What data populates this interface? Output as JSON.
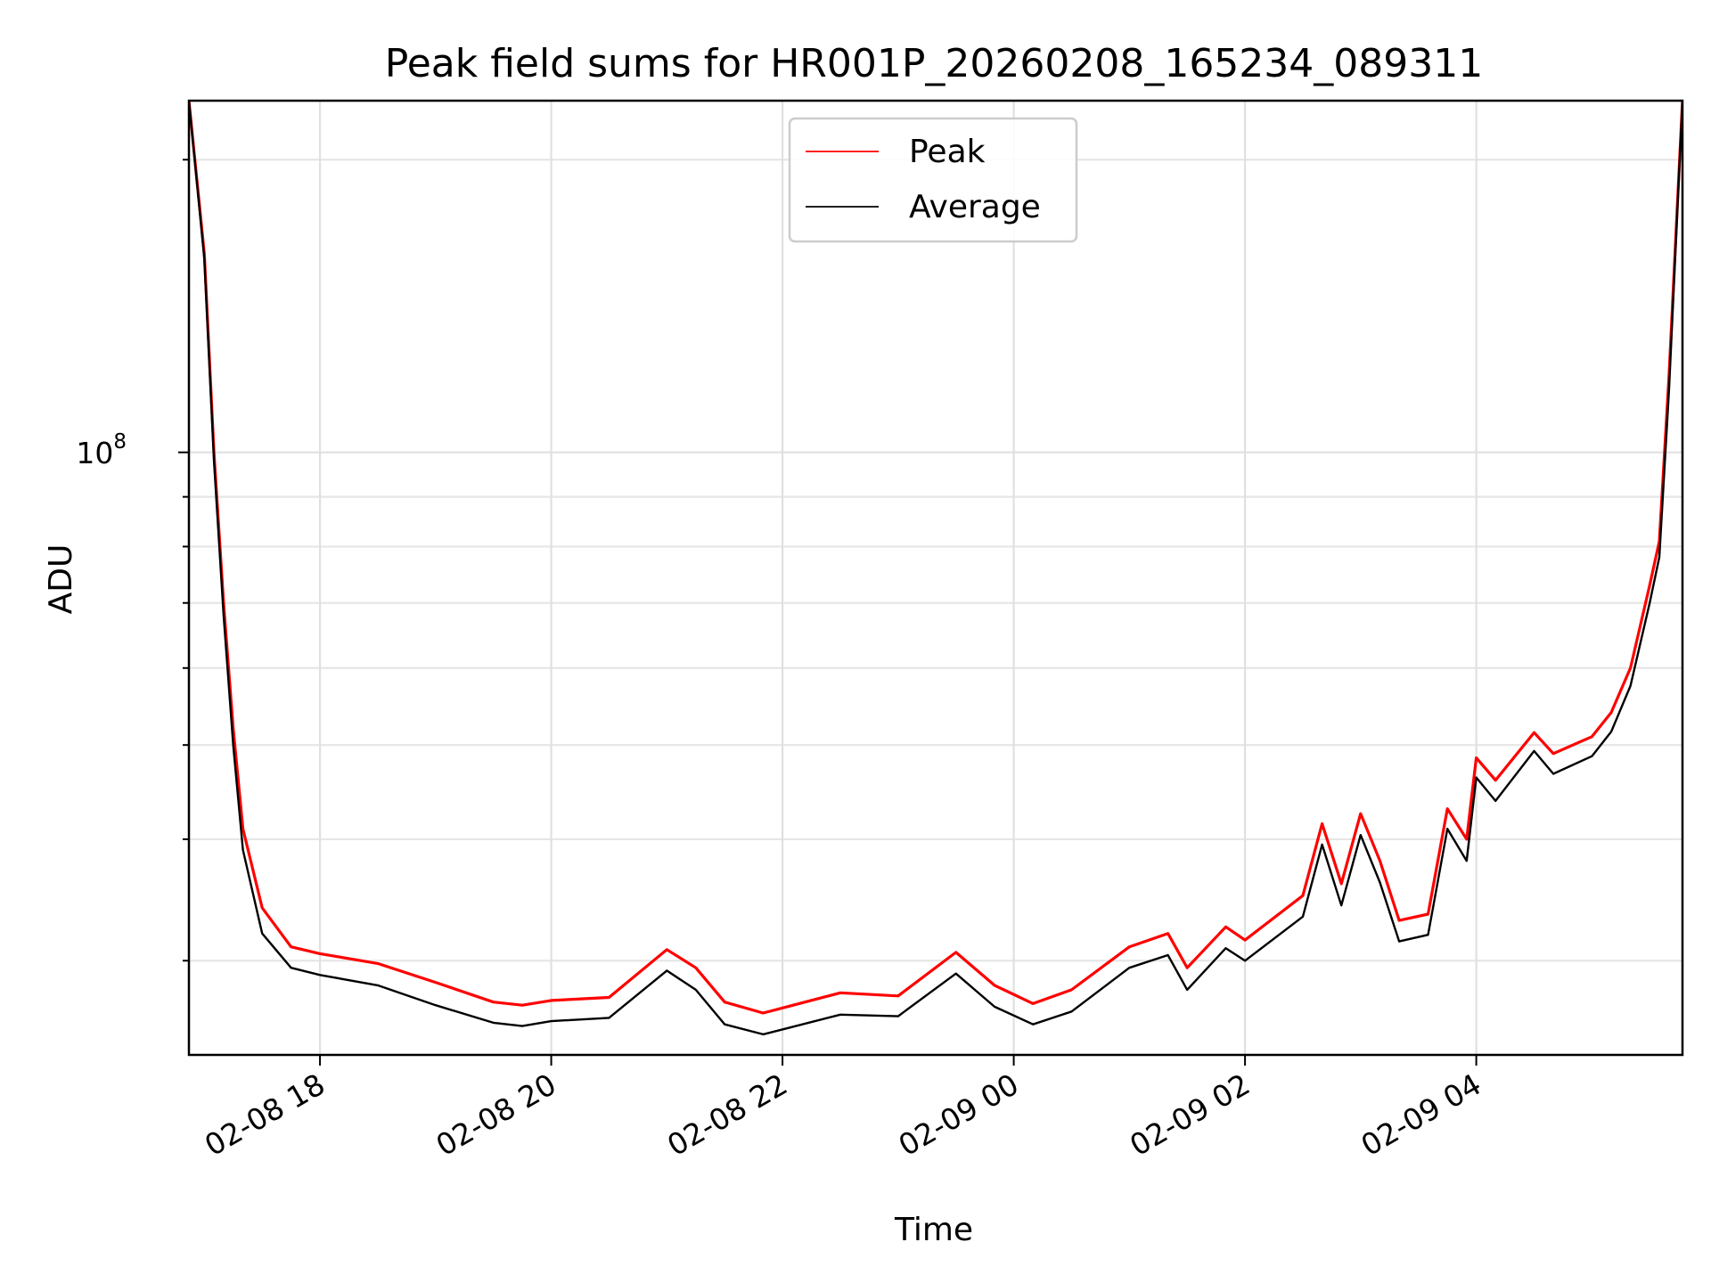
{
  "chart_data": {
    "type": "line",
    "title": "Peak field sums for HR001P_20260208_165234_089311",
    "xlabel": "Time",
    "ylabel": "ADU",
    "x_ticks": [
      "02-08 18",
      "02-08 20",
      "02-08 22",
      "02-09 00",
      "02-09 02",
      "02-09 04"
    ],
    "y_tick_base": "10",
    "y_tick_exponent": "8",
    "yscale": "log",
    "xlim": [
      "2026-02-08 16:52",
      "2026-02-09 05:47"
    ],
    "ylim": [
      24000000,
      230000000
    ],
    "grid": true,
    "legend_position": "upper center",
    "x": [
      "2026-02-08 16:52",
      "2026-02-08 17:00",
      "2026-02-08 17:05",
      "2026-02-08 17:10",
      "2026-02-08 17:15",
      "2026-02-08 17:20",
      "2026-02-08 17:30",
      "2026-02-08 17:45",
      "2026-02-08 18:00",
      "2026-02-08 18:30",
      "2026-02-08 19:00",
      "2026-02-08 19:30",
      "2026-02-08 19:45",
      "2026-02-08 20:00",
      "2026-02-08 20:30",
      "2026-02-08 21:00",
      "2026-02-08 21:15",
      "2026-02-08 21:30",
      "2026-02-08 21:50",
      "2026-02-08 22:30",
      "2026-02-08 23:00",
      "2026-02-08 23:30",
      "2026-02-08 23:50",
      "2026-02-09 00:10",
      "2026-02-09 00:30",
      "2026-02-09 01:00",
      "2026-02-09 01:20",
      "2026-02-09 01:30",
      "2026-02-09 01:50",
      "2026-02-09 02:00",
      "2026-02-09 02:30",
      "2026-02-09 02:40",
      "2026-02-09 02:50",
      "2026-02-09 03:00",
      "2026-02-09 03:10",
      "2026-02-09 03:20",
      "2026-02-09 03:35",
      "2026-02-09 03:45",
      "2026-02-09 03:55",
      "2026-02-09 04:00",
      "2026-02-09 04:10",
      "2026-02-09 04:30",
      "2026-02-09 04:40",
      "2026-02-09 05:00",
      "2026-02-09 05:10",
      "2026-02-09 05:20",
      "2026-02-09 05:30",
      "2026-02-09 05:35",
      "2026-02-09 05:40",
      "2026-02-09 05:47"
    ],
    "series": [
      {
        "name": "Peak",
        "color": "#ff0000",
        "values": [
          230000000,
          160000000,
          100000000,
          70000000,
          52000000,
          41000000,
          34000000,
          31000000,
          30500000,
          29800000,
          28500000,
          27200000,
          27000000,
          27300000,
          27500000,
          30800000,
          29500000,
          27200000,
          26500000,
          27800000,
          27600000,
          30600000,
          28300000,
          27100000,
          28000000,
          31000000,
          32000000,
          29500000,
          32500000,
          31500000,
          35000000,
          41500000,
          36000000,
          42500000,
          38000000,
          33000000,
          33500000,
          43000000,
          40000000,
          48500000,
          46000000,
          51500000,
          49000000,
          51000000,
          54000000,
          60000000,
          73000000,
          81000000,
          120000000,
          230000000
        ]
      },
      {
        "name": "Average",
        "color": "#000000",
        "values": [
          230000000,
          158000000,
          98000000,
          68000000,
          50000000,
          39000000,
          32000000,
          29500000,
          29000000,
          28300000,
          27000000,
          25900000,
          25700000,
          26000000,
          26200000,
          29300000,
          28000000,
          25800000,
          25200000,
          26400000,
          26300000,
          29100000,
          26900000,
          25800000,
          26600000,
          29500000,
          30400000,
          28000000,
          30900000,
          30000000,
          33300000,
          39500000,
          34200000,
          40400000,
          36100000,
          31400000,
          31900000,
          41000000,
          38000000,
          46300000,
          43800000,
          49300000,
          46700000,
          48700000,
          51600000,
          57500000,
          70000000,
          78000000,
          116000000,
          230000000
        ]
      }
    ]
  }
}
